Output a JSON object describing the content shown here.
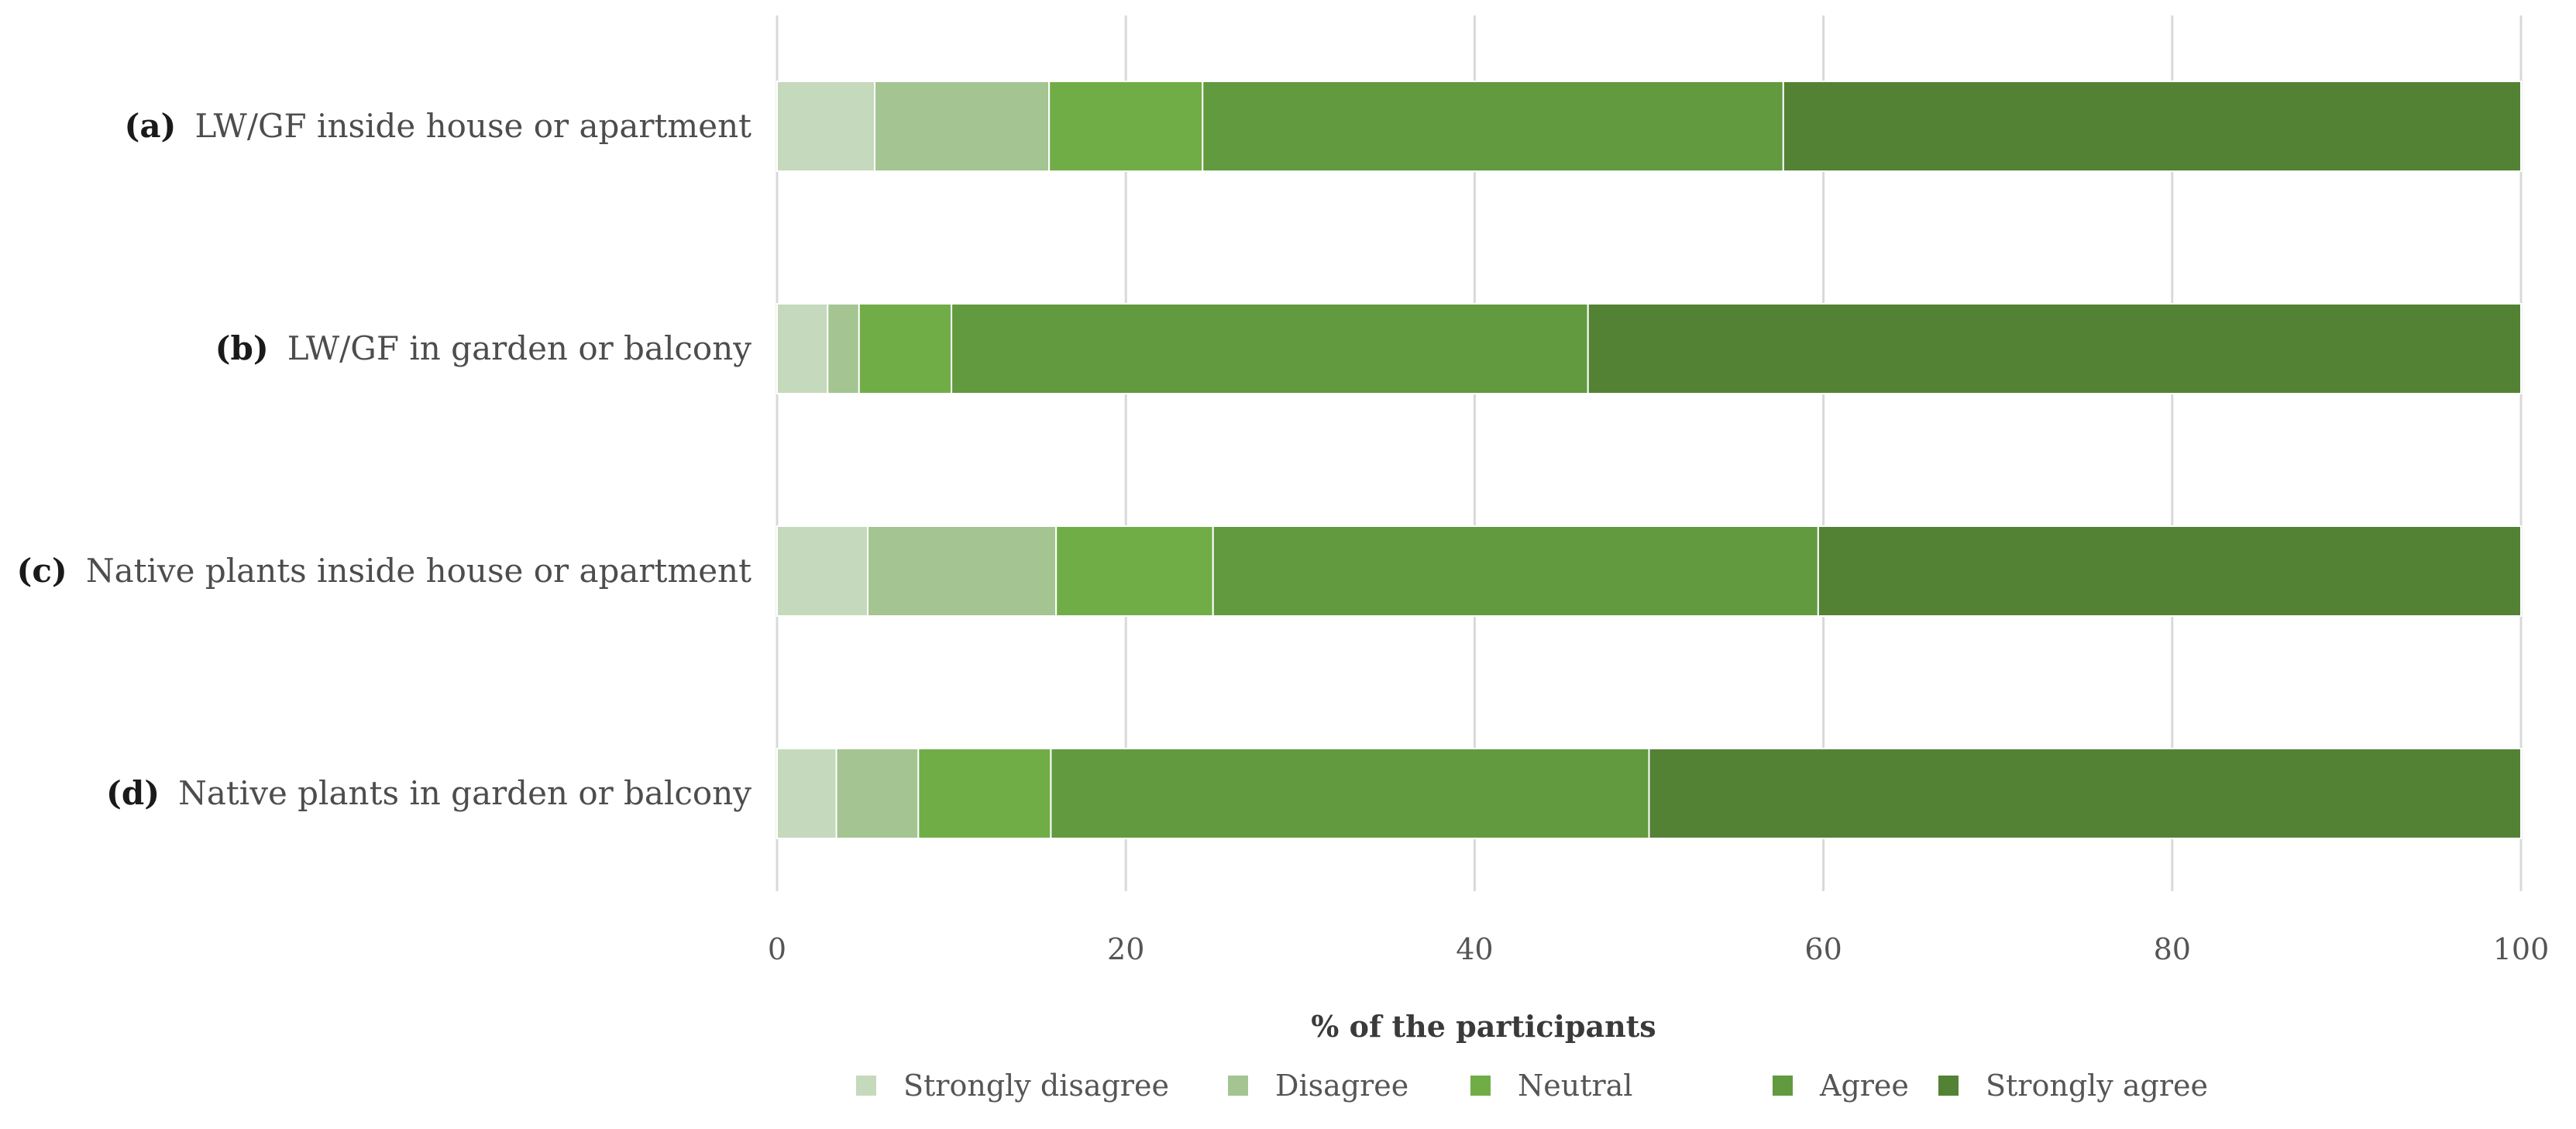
{
  "chart_data": {
    "type": "bar",
    "orientation": "horizontal",
    "stacked": true,
    "title": "",
    "xlabel": "% of the participants",
    "ylabel": "",
    "xlim": [
      0,
      100
    ],
    "xticks": [
      0,
      20,
      40,
      60,
      80,
      100
    ],
    "grid": true,
    "legend_position": "bottom",
    "categories": [
      {
        "prefix": "(a)",
        "label": "LW/GF inside house or apartment"
      },
      {
        "prefix": "(b)",
        "label": "LW/GF in garden or balcony"
      },
      {
        "prefix": "(c)",
        "label": "Native plants inside house or apartment"
      },
      {
        "prefix": "(d)",
        "label": "Native plants in garden or balcony"
      }
    ],
    "series": [
      {
        "name": "Strongly disagree",
        "color": "#c5d9bc",
        "values": [
          5.6,
          2.9,
          5.2,
          3.4
        ]
      },
      {
        "name": "Disagree",
        "color": "#a4c491",
        "values": [
          10.0,
          1.8,
          10.8,
          4.7
        ]
      },
      {
        "name": "Neutral",
        "color": "#70ad47",
        "values": [
          8.8,
          5.3,
          9.0,
          7.6
        ]
      },
      {
        "name": "Agree",
        "color": "#629a3f",
        "values": [
          33.3,
          36.5,
          34.7,
          34.3
        ]
      },
      {
        "name": "Strongly agree",
        "color": "#548235",
        "values": [
          42.3,
          53.5,
          40.3,
          50.0
        ]
      }
    ]
  }
}
